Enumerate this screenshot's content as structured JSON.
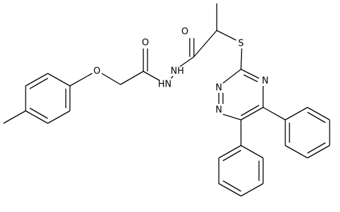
{
  "atoms": [
    {
      "label": "O"
    },
    {
      "label": "O"
    },
    {
      "label": "NH"
    },
    {
      "label": "HN"
    },
    {
      "label": "O"
    },
    {
      "label": "S"
    },
    {
      "label": "N"
    },
    {
      "label": "N"
    },
    {
      "label": "N"
    }
  ]
}
